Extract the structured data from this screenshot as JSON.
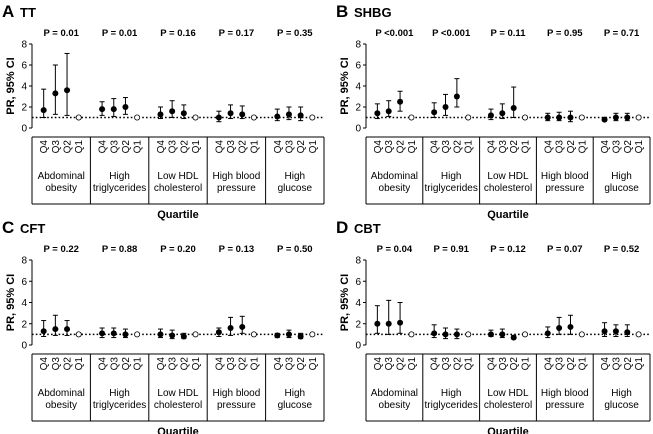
{
  "chart_data": [
    {
      "type": "scatter",
      "letter": "A",
      "title": "TT",
      "ylabel": "PR, 95% CI",
      "xlabel": "Quartile",
      "ylim": [
        0,
        8
      ],
      "yticks": [
        "0",
        "2",
        "4",
        "6",
        "8"
      ],
      "reference_line": 1,
      "quartiles": [
        "Q4",
        "Q3",
        "Q2",
        "Q1"
      ],
      "groups": [
        {
          "label": [
            "Abdominal",
            "obesity"
          ],
          "p": "P = 0.01",
          "points": [
            {
              "q": "Q4",
              "est": 1.7,
              "lo": 1.0,
              "hi": 3.7
            },
            {
              "q": "Q3",
              "est": 3.3,
              "lo": 1.3,
              "hi": 6.0
            },
            {
              "q": "Q2",
              "est": 3.6,
              "lo": 1.2,
              "hi": 7.1
            },
            {
              "q": "Q1",
              "est": 1,
              "ref": true
            }
          ]
        },
        {
          "label": [
            "High",
            "triglycerides"
          ],
          "p": "P = 0.01",
          "points": [
            {
              "q": "Q4",
              "est": 1.8,
              "lo": 1.2,
              "hi": 2.5
            },
            {
              "q": "Q3",
              "est": 1.8,
              "lo": 1.1,
              "hi": 2.8
            },
            {
              "q": "Q2",
              "est": 2.0,
              "lo": 1.3,
              "hi": 2.9
            },
            {
              "q": "Q1",
              "est": 1,
              "ref": true
            }
          ]
        },
        {
          "label": [
            "Low HDL",
            "cholesterol"
          ],
          "p": "P = 0.16",
          "points": [
            {
              "q": "Q4",
              "est": 1.3,
              "lo": 0.9,
              "hi": 2.0
            },
            {
              "q": "Q3",
              "est": 1.6,
              "lo": 1.0,
              "hi": 2.6
            },
            {
              "q": "Q2",
              "est": 1.4,
              "lo": 0.9,
              "hi": 2.2
            },
            {
              "q": "Q1",
              "est": 1,
              "ref": true
            }
          ]
        },
        {
          "label": [
            "High blood",
            "pressure"
          ],
          "p": "P = 0.17",
          "points": [
            {
              "q": "Q4",
              "est": 1.0,
              "lo": 0.6,
              "hi": 1.6
            },
            {
              "q": "Q3",
              "est": 1.4,
              "lo": 0.9,
              "hi": 2.2
            },
            {
              "q": "Q2",
              "est": 1.3,
              "lo": 0.9,
              "hi": 2.1
            },
            {
              "q": "Q1",
              "est": 1,
              "ref": true
            }
          ]
        },
        {
          "label": [
            "High",
            "glucose"
          ],
          "p": "P = 0.35",
          "points": [
            {
              "q": "Q4",
              "est": 1.1,
              "lo": 0.7,
              "hi": 1.8
            },
            {
              "q": "Q3",
              "est": 1.3,
              "lo": 0.8,
              "hi": 2.0
            },
            {
              "q": "Q2",
              "est": 1.2,
              "lo": 0.7,
              "hi": 2.0
            },
            {
              "q": "Q1",
              "est": 1,
              "ref": true
            }
          ]
        }
      ]
    },
    {
      "type": "scatter",
      "letter": "B",
      "title": "SHBG",
      "ylabel": "PR, 95% CI",
      "xlabel": "Quartile",
      "ylim": [
        0,
        8
      ],
      "yticks": [
        "0",
        "2",
        "4",
        "6",
        "8"
      ],
      "reference_line": 1,
      "quartiles": [
        "Q4",
        "Q3",
        "Q2",
        "Q1"
      ],
      "groups": [
        {
          "label": [
            "Abdominal",
            "obesity"
          ],
          "p": "P <0.001",
          "points": [
            {
              "q": "Q4",
              "est": 1.4,
              "lo": 0.9,
              "hi": 2.3
            },
            {
              "q": "Q3",
              "est": 1.6,
              "lo": 1.1,
              "hi": 2.6
            },
            {
              "q": "Q2",
              "est": 2.5,
              "lo": 1.6,
              "hi": 3.5
            },
            {
              "q": "Q1",
              "est": 1,
              "ref": true
            }
          ]
        },
        {
          "label": [
            "High",
            "triglycerides"
          ],
          "p": "P <0.001",
          "points": [
            {
              "q": "Q4",
              "est": 1.5,
              "lo": 1.0,
              "hi": 2.4
            },
            {
              "q": "Q3",
              "est": 2.0,
              "lo": 1.2,
              "hi": 3.2
            },
            {
              "q": "Q2",
              "est": 3.0,
              "lo": 2.0,
              "hi": 4.7
            },
            {
              "q": "Q1",
              "est": 1,
              "ref": true
            }
          ]
        },
        {
          "label": [
            "Low HDL",
            "cholesterol"
          ],
          "p": "P = 0.11",
          "points": [
            {
              "q": "Q4",
              "est": 1.2,
              "lo": 0.8,
              "hi": 1.8
            },
            {
              "q": "Q3",
              "est": 1.4,
              "lo": 0.9,
              "hi": 2.3
            },
            {
              "q": "Q2",
              "est": 1.9,
              "lo": 1.0,
              "hi": 3.9
            },
            {
              "q": "Q1",
              "est": 1,
              "ref": true
            }
          ]
        },
        {
          "label": [
            "High blood",
            "pressure"
          ],
          "p": "P = 0.95",
          "points": [
            {
              "q": "Q4",
              "est": 1.0,
              "lo": 0.7,
              "hi": 1.4
            },
            {
              "q": "Q3",
              "est": 1.0,
              "lo": 0.7,
              "hi": 1.5
            },
            {
              "q": "Q2",
              "est": 1.0,
              "lo": 0.6,
              "hi": 1.6
            },
            {
              "q": "Q1",
              "est": 1,
              "ref": true
            }
          ]
        },
        {
          "label": [
            "High",
            "glucose"
          ],
          "p": "P = 0.71",
          "points": [
            {
              "q": "Q4",
              "est": 0.8,
              "lo": 0.7,
              "hi": 1.0
            },
            {
              "q": "Q3",
              "est": 1.0,
              "lo": 0.7,
              "hi": 1.4
            },
            {
              "q": "Q2",
              "est": 1.0,
              "lo": 0.7,
              "hi": 1.4
            },
            {
              "q": "Q1",
              "est": 1,
              "ref": true
            }
          ]
        }
      ]
    },
    {
      "type": "scatter",
      "letter": "C",
      "title": "CFT",
      "ylabel": "PR, 95% CI",
      "xlabel": "Quartile",
      "ylim": [
        0,
        8
      ],
      "yticks": [
        "0",
        "2",
        "4",
        "6",
        "8"
      ],
      "reference_line": 1,
      "quartiles": [
        "Q4",
        "Q3",
        "Q2",
        "Q1"
      ],
      "groups": [
        {
          "label": [
            "Abdominal",
            "obesity"
          ],
          "p": "P = 0.22",
          "points": [
            {
              "q": "Q4",
              "est": 1.3,
              "lo": 0.8,
              "hi": 2.3
            },
            {
              "q": "Q3",
              "est": 1.5,
              "lo": 0.9,
              "hi": 2.8
            },
            {
              "q": "Q2",
              "est": 1.5,
              "lo": 0.9,
              "hi": 2.3
            },
            {
              "q": "Q1",
              "est": 1,
              "ref": true
            }
          ]
        },
        {
          "label": [
            "High",
            "triglycerides"
          ],
          "p": "P = 0.88",
          "points": [
            {
              "q": "Q4",
              "est": 1.1,
              "lo": 0.7,
              "hi": 1.6
            },
            {
              "q": "Q3",
              "est": 1.1,
              "lo": 0.7,
              "hi": 1.6
            },
            {
              "q": "Q2",
              "est": 1.0,
              "lo": 0.7,
              "hi": 1.5
            },
            {
              "q": "Q1",
              "est": 1,
              "ref": true
            }
          ]
        },
        {
          "label": [
            "Low HDL",
            "cholesterol"
          ],
          "p": "P = 0.20",
          "points": [
            {
              "q": "Q4",
              "est": 1.0,
              "lo": 0.7,
              "hi": 1.5
            },
            {
              "q": "Q3",
              "est": 0.9,
              "lo": 0.6,
              "hi": 1.4
            },
            {
              "q": "Q2",
              "est": 0.8,
              "lo": 0.6,
              "hi": 1.1
            },
            {
              "q": "Q1",
              "est": 1,
              "ref": true
            }
          ]
        },
        {
          "label": [
            "High blood",
            "pressure"
          ],
          "p": "P = 0.13",
          "points": [
            {
              "q": "Q4",
              "est": 1.2,
              "lo": 0.8,
              "hi": 1.6
            },
            {
              "q": "Q3",
              "est": 1.6,
              "lo": 0.9,
              "hi": 2.6
            },
            {
              "q": "Q2",
              "est": 1.7,
              "lo": 1.1,
              "hi": 2.7
            },
            {
              "q": "Q1",
              "est": 1,
              "ref": true
            }
          ]
        },
        {
          "label": [
            "High",
            "glucose"
          ],
          "p": "P = 0.50",
          "points": [
            {
              "q": "Q4",
              "est": 0.9,
              "lo": 0.7,
              "hi": 1.1
            },
            {
              "q": "Q3",
              "est": 1.0,
              "lo": 0.7,
              "hi": 1.4
            },
            {
              "q": "Q2",
              "est": 0.8,
              "lo": 0.6,
              "hi": 1.1
            },
            {
              "q": "Q1",
              "est": 1,
              "ref": true
            }
          ]
        }
      ]
    },
    {
      "type": "scatter",
      "letter": "D",
      "title": "CBT",
      "ylabel": "PR, 95% CI",
      "xlabel": "Quartile",
      "ylim": [
        0,
        8
      ],
      "yticks": [
        "0",
        "2",
        "4",
        "6",
        "8"
      ],
      "reference_line": 1,
      "quartiles": [
        "Q4",
        "Q3",
        "Q2",
        "Q1"
      ],
      "groups": [
        {
          "label": [
            "Abdominal",
            "obesity"
          ],
          "p": "P = 0.04",
          "points": [
            {
              "q": "Q4",
              "est": 2.0,
              "lo": 1.1,
              "hi": 3.7
            },
            {
              "q": "Q3",
              "est": 2.0,
              "lo": 1.0,
              "hi": 4.2
            },
            {
              "q": "Q2",
              "est": 2.1,
              "lo": 1.1,
              "hi": 4.0
            },
            {
              "q": "Q1",
              "est": 1,
              "ref": true
            }
          ]
        },
        {
          "label": [
            "High",
            "triglycerides"
          ],
          "p": "P = 0.91",
          "points": [
            {
              "q": "Q4",
              "est": 1.1,
              "lo": 0.7,
              "hi": 1.9
            },
            {
              "q": "Q3",
              "est": 1.0,
              "lo": 0.6,
              "hi": 1.6
            },
            {
              "q": "Q2",
              "est": 1.0,
              "lo": 0.6,
              "hi": 1.5
            },
            {
              "q": "Q1",
              "est": 1,
              "ref": true
            }
          ]
        },
        {
          "label": [
            "Low HDL",
            "cholesterol"
          ],
          "p": "P = 0.12",
          "points": [
            {
              "q": "Q4",
              "est": 1.0,
              "lo": 0.8,
              "hi": 1.4
            },
            {
              "q": "Q3",
              "est": 1.0,
              "lo": 0.7,
              "hi": 1.5
            },
            {
              "q": "Q2",
              "est": 0.7,
              "lo": 0.6,
              "hi": 0.9
            },
            {
              "q": "Q1",
              "est": 1,
              "ref": true
            }
          ]
        },
        {
          "label": [
            "High blood",
            "pressure"
          ],
          "p": "P = 0.07",
          "points": [
            {
              "q": "Q4",
              "est": 1.1,
              "lo": 0.7,
              "hi": 1.7
            },
            {
              "q": "Q3",
              "est": 1.6,
              "lo": 1.0,
              "hi": 2.6
            },
            {
              "q": "Q2",
              "est": 1.7,
              "lo": 1.0,
              "hi": 2.8
            },
            {
              "q": "Q1",
              "est": 1,
              "ref": true
            }
          ]
        },
        {
          "label": [
            "High",
            "glucose"
          ],
          "p": "P = 0.52",
          "points": [
            {
              "q": "Q4",
              "est": 1.3,
              "lo": 0.8,
              "hi": 2.1
            },
            {
              "q": "Q3",
              "est": 1.3,
              "lo": 0.8,
              "hi": 1.9
            },
            {
              "q": "Q2",
              "est": 1.2,
              "lo": 0.8,
              "hi": 1.9
            },
            {
              "q": "Q1",
              "est": 1,
              "ref": true
            }
          ]
        }
      ]
    }
  ]
}
